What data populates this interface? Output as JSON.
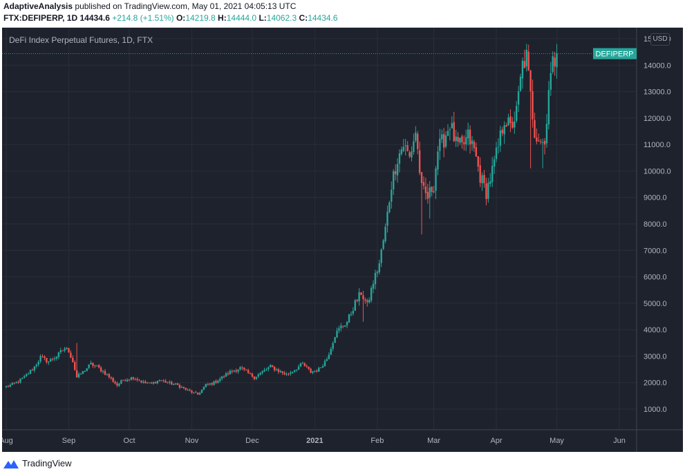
{
  "header": {
    "author": "AdaptiveAnalysis",
    "published_text": "published on TradingView.com, May 01, 2021 04:05:13 UTC",
    "symbol": "FTX:DEFIPERP, 1D",
    "last": "14434.6",
    "change": "+214.8 (+1.51%)",
    "o_label": "O:",
    "o": "14219.8",
    "h_label": "H:",
    "h": "14444.0",
    "l_label": "L:",
    "l": "14062.3",
    "c_label": "C:",
    "c": "14434.6"
  },
  "chart_title": "DeFi Index Perpetual Futures, 1D, FTX",
  "currency": "USD",
  "price_tag": "DEFIPERP",
  "footer": {
    "brand": "TradingView"
  },
  "colors": {
    "background": "#1e222d",
    "up": "#26a69a",
    "down": "#ef5350",
    "grid": "#2a2e39",
    "axis_text": "#b2b5be",
    "tag": "#26a69a"
  },
  "chart_data": {
    "type": "candlestick",
    "title": "DeFi Index Perpetual Futures, 1D, FTX",
    "ylabel": "USD",
    "y_range": [
      0,
      16000
    ],
    "y_ticks": [
      "1000.0",
      "2000.0",
      "3000.0",
      "4000.0",
      "5000.0",
      "6000.0",
      "7000.0",
      "8000.0",
      "9000.0",
      "10000.0",
      "11000.0",
      "12000.0",
      "13000.0",
      "14000.0",
      "15000.0",
      "16000.0"
    ],
    "x_ticks": [
      {
        "label": "Aug",
        "date": "2020-08-01"
      },
      {
        "label": "Sep",
        "date": "2020-09-01"
      },
      {
        "label": "Oct",
        "date": "2020-10-01"
      },
      {
        "label": "Nov",
        "date": "2020-11-01"
      },
      {
        "label": "Dec",
        "date": "2020-12-01"
      },
      {
        "label": "2021",
        "date": "2021-01-01"
      },
      {
        "label": "Feb",
        "date": "2021-02-01"
      },
      {
        "label": "Mar",
        "date": "2021-03-01"
      },
      {
        "label": "Apr",
        "date": "2021-04-01"
      },
      {
        "label": "May",
        "date": "2021-05-01"
      },
      {
        "label": "Jun",
        "date": "2021-06-01"
      }
    ],
    "close_path": [
      [
        "2020-08-01",
        1850
      ],
      [
        "2020-08-05",
        1950
      ],
      [
        "2020-08-10",
        2200
      ],
      [
        "2020-08-15",
        2600
      ],
      [
        "2020-08-18",
        2950
      ],
      [
        "2020-08-22",
        2800
      ],
      [
        "2020-08-26",
        3000
      ],
      [
        "2020-08-30",
        3300
      ],
      [
        "2020-09-01",
        3200
      ],
      [
        "2020-09-03",
        2800
      ],
      [
        "2020-09-05",
        2200
      ],
      [
        "2020-09-08",
        2400
      ],
      [
        "2020-09-12",
        2700
      ],
      [
        "2020-09-15",
        2600
      ],
      [
        "2020-09-20",
        2300
      ],
      [
        "2020-09-25",
        1900
      ],
      [
        "2020-09-28",
        2100
      ],
      [
        "2020-10-03",
        2200
      ],
      [
        "2020-10-08",
        2000
      ],
      [
        "2020-10-12",
        1950
      ],
      [
        "2020-10-16",
        2100
      ],
      [
        "2020-10-20",
        2000
      ],
      [
        "2020-10-25",
        1900
      ],
      [
        "2020-10-30",
        1700
      ],
      [
        "2020-11-04",
        1550
      ],
      [
        "2020-11-08",
        1900
      ],
      [
        "2020-11-12",
        2000
      ],
      [
        "2020-11-16",
        2200
      ],
      [
        "2020-11-20",
        2400
      ],
      [
        "2020-11-25",
        2550
      ],
      [
        "2020-11-28",
        2400
      ],
      [
        "2020-12-02",
        2200
      ],
      [
        "2020-12-06",
        2400
      ],
      [
        "2020-12-10",
        2600
      ],
      [
        "2020-12-14",
        2450
      ],
      [
        "2020-12-18",
        2300
      ],
      [
        "2020-12-22",
        2500
      ],
      [
        "2020-12-26",
        2700
      ],
      [
        "2020-12-30",
        2400
      ],
      [
        "2021-01-03",
        2500
      ],
      [
        "2021-01-07",
        2900
      ],
      [
        "2021-01-11",
        3800
      ],
      [
        "2021-01-14",
        4100
      ],
      [
        "2021-01-17",
        4300
      ],
      [
        "2021-01-21",
        5000
      ],
      [
        "2021-01-24",
        5400
      ],
      [
        "2021-01-27",
        4900
      ],
      [
        "2021-01-30",
        5800
      ],
      [
        "2021-02-02",
        6500
      ],
      [
        "2021-02-05",
        7800
      ],
      [
        "2021-02-08",
        9500
      ],
      [
        "2021-02-11",
        10500
      ],
      [
        "2021-02-14",
        11000
      ],
      [
        "2021-02-17",
        10500
      ],
      [
        "2021-02-20",
        11500
      ],
      [
        "2021-02-23",
        9300
      ],
      [
        "2021-02-26",
        9000
      ],
      [
        "2021-03-01",
        9500
      ],
      [
        "2021-03-03",
        10800
      ],
      [
        "2021-03-06",
        11200
      ],
      [
        "2021-03-09",
        11800
      ],
      [
        "2021-03-12",
        11000
      ],
      [
        "2021-03-15",
        10900
      ],
      [
        "2021-03-18",
        11300
      ],
      [
        "2021-03-21",
        10800
      ],
      [
        "2021-03-24",
        9800
      ],
      [
        "2021-03-27",
        9200
      ],
      [
        "2021-03-30",
        10000
      ],
      [
        "2021-04-02",
        10900
      ],
      [
        "2021-04-05",
        12000
      ],
      [
        "2021-04-08",
        11600
      ],
      [
        "2021-04-11",
        12200
      ],
      [
        "2021-04-14",
        14000
      ],
      [
        "2021-04-16",
        14300
      ],
      [
        "2021-04-18",
        12800
      ],
      [
        "2021-04-20",
        11500
      ],
      [
        "2021-04-23",
        11200
      ],
      [
        "2021-04-25",
        11000
      ],
      [
        "2021-04-27",
        13200
      ],
      [
        "2021-04-29",
        14000
      ],
      [
        "2021-05-01",
        14434.6
      ]
    ],
    "wick_events": [
      {
        "date": "2021-01-25",
        "low": 4300
      },
      {
        "date": "2021-02-23",
        "low": 7600
      },
      {
        "date": "2021-02-27",
        "low": 8200
      },
      {
        "date": "2021-04-18",
        "low": 10100
      },
      {
        "date": "2021-04-24",
        "low": 10100
      },
      {
        "date": "2020-09-05",
        "high": 3500
      }
    ],
    "last_price": 14434.6
  }
}
